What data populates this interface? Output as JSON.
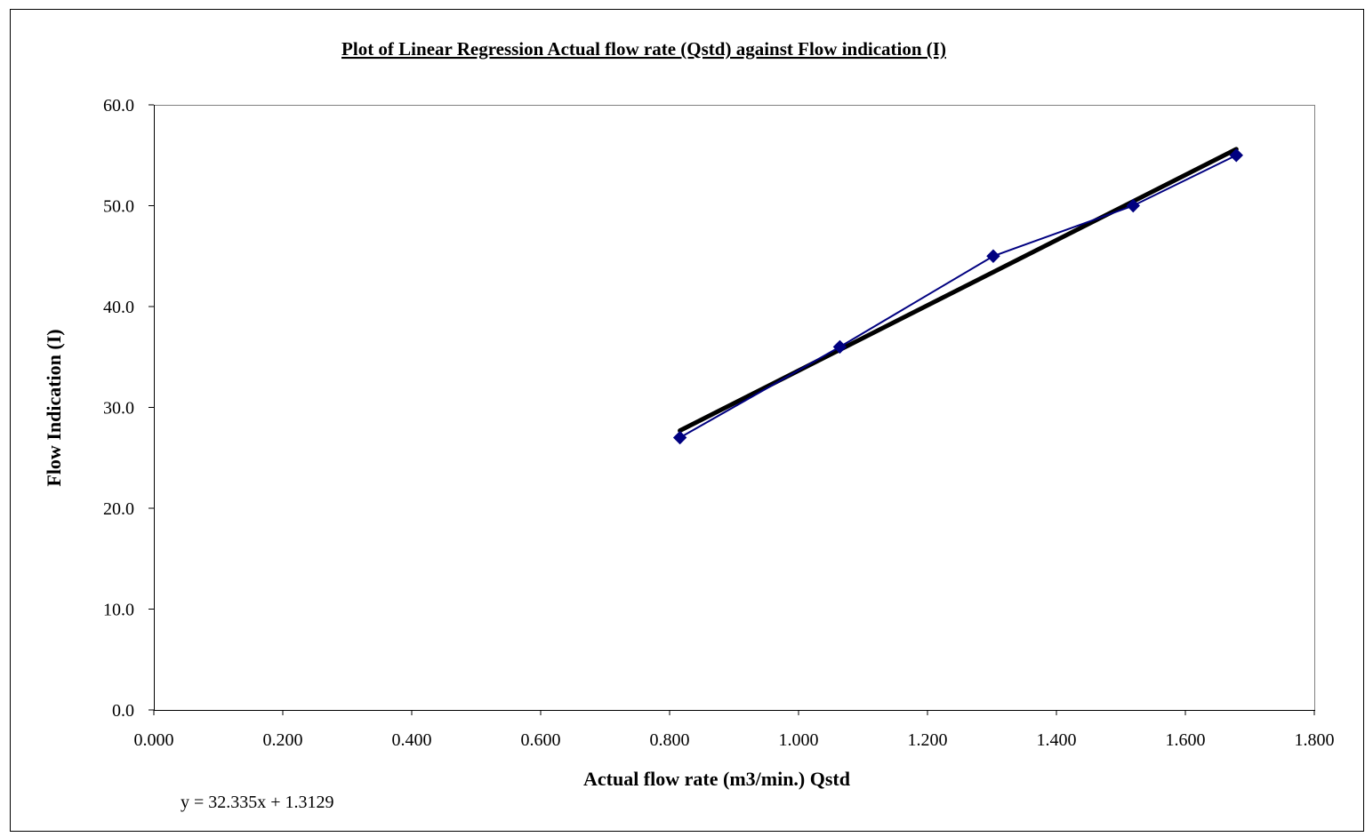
{
  "chart_data": {
    "type": "scatter",
    "title": "Plot of Linear Regression Actual flow rate (Qstd) against Flow indication (I)",
    "xlabel": "Actual flow rate (m3/min.) Qstd",
    "ylabel": "Flow Indication (I)",
    "xlim": [
      0.0,
      1.8
    ],
    "ylim": [
      0.0,
      60.0
    ],
    "x_ticks": [
      "0.000",
      "0.200",
      "0.400",
      "0.600",
      "0.800",
      "1.000",
      "1.200",
      "1.400",
      "1.600",
      "1.800"
    ],
    "y_ticks": [
      "0.0",
      "10.0",
      "20.0",
      "30.0",
      "40.0",
      "50.0",
      "60.0"
    ],
    "grid": false,
    "series": [
      {
        "x": [
          0.816,
          1.064,
          1.302,
          1.519,
          1.679
        ],
        "y": [
          27.0,
          36.0,
          45.0,
          50.0,
          55.0
        ],
        "color": "#000080",
        "marker": "diamond"
      }
    ],
    "trendline": {
      "type": "linear",
      "slope": 32.335,
      "intercept": 1.3129,
      "x_range": [
        0.816,
        1.679
      ],
      "color": "#000000"
    },
    "equation_label": "y = 32.335x + 1.3129"
  }
}
